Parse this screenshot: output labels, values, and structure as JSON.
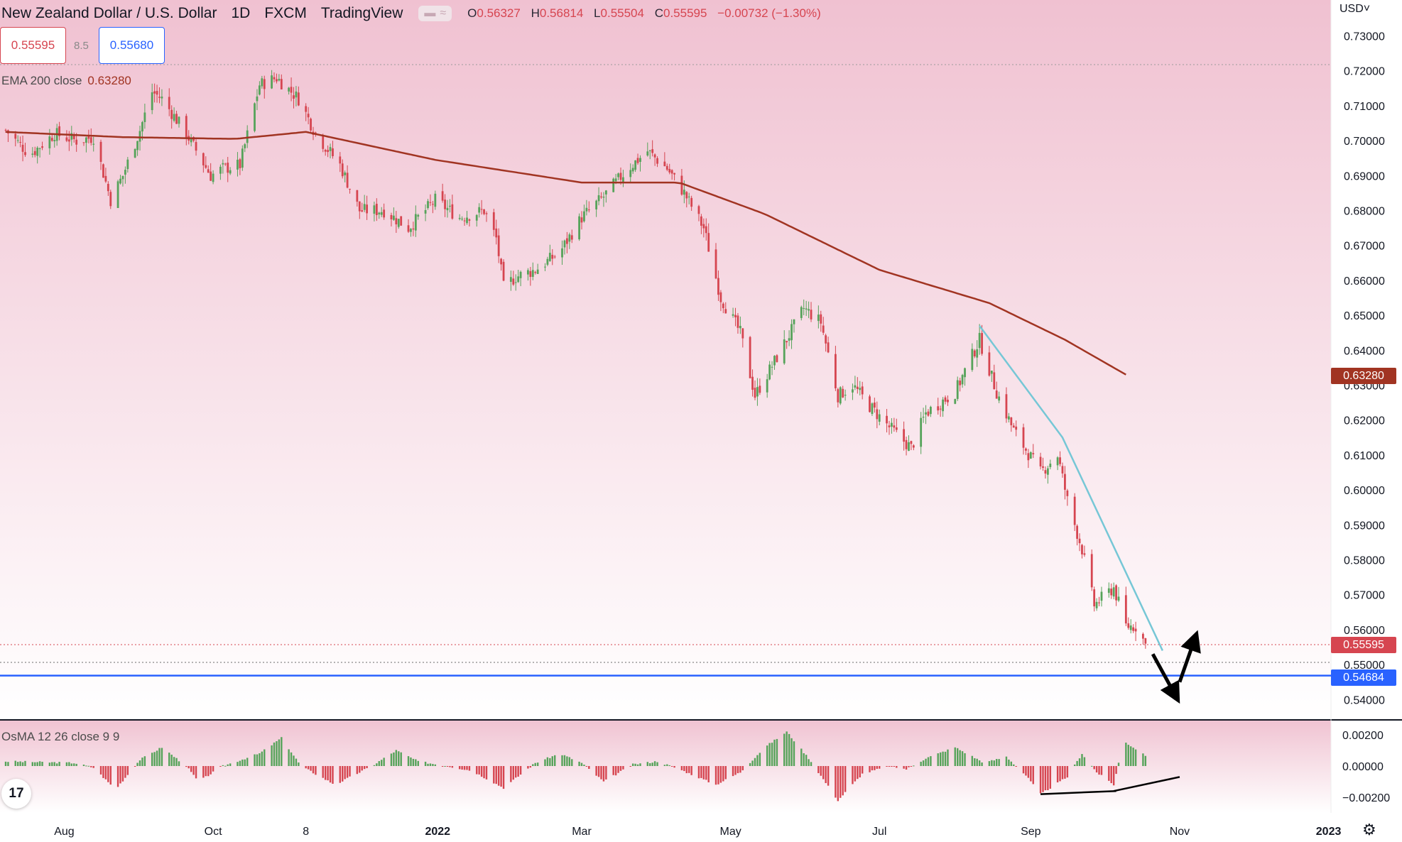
{
  "header": {
    "symbol": "New Zealand Dollar / U.S. Dollar",
    "interval": "1D",
    "exchange": "FXCM",
    "source": "TradingView",
    "ohlc": {
      "open_label": "O",
      "open": "0.56327",
      "high_label": "H",
      "high": "0.56814",
      "low_label": "L",
      "low": "0.55504",
      "close_label": "C",
      "close": "0.55595",
      "change": "−0.00732 (−1.30%)"
    }
  },
  "quote": {
    "bid": "0.55595",
    "spread": "8.5",
    "ask": "0.55680"
  },
  "indicators": {
    "ema": {
      "label": "EMA 200 close",
      "value": "0.63280"
    },
    "osma": {
      "label": "OsMA 12 26 close 9 9"
    }
  },
  "axis": {
    "currency": "USD˅"
  },
  "price_tags": {
    "ema": "0.63280",
    "close": "0.55595",
    "support": "0.54684"
  },
  "colors": {
    "up": "#26a69a",
    "up_body": "#56a35a",
    "down": "#d64550",
    "ema": "#a13422",
    "trendline": "#76c7d6",
    "support": "#2962ff"
  },
  "icons": {
    "logo": "tradingview-logo-icon",
    "settings": "gear-icon",
    "visibility": "eye-icon"
  },
  "chart_data": [
    {
      "type": "candlestick",
      "title": "New Zealand Dollar / U.S. Dollar",
      "ylim": [
        0.538,
        0.735
      ],
      "y_ticks": [
        "0.73000",
        "0.72000",
        "0.71000",
        "0.70000",
        "0.69000",
        "0.68000",
        "0.67000",
        "0.66000",
        "0.65000",
        "0.64000",
        "0.63000",
        "0.62000",
        "0.61000",
        "0.60000",
        "0.59000",
        "0.58000",
        "0.57000",
        "0.56000",
        "0.55000",
        "0.54000"
      ],
      "x_ticks": [
        "Aug",
        "Oct",
        "8",
        "2022",
        "Mar",
        "May",
        "Jul",
        "Sep",
        "Nov",
        "2023"
      ],
      "x_tick_dates": [
        "2021-08-01",
        "2021-10-01",
        "2021-11-08",
        "2022-01-01",
        "2022-03-01",
        "2022-05-01",
        "2022-07-01",
        "2022-09-01",
        "2022-11-01",
        "2023-01-01"
      ],
      "series": [
        {
          "kind": "close_path",
          "points": [
            [
              "2021-07-08",
              0.703
            ],
            [
              "2021-07-18",
              0.696
            ],
            [
              "2021-07-28",
              0.702
            ],
            [
              "2021-08-06",
              0.7
            ],
            [
              "2021-08-13",
              0.701
            ],
            [
              "2021-08-20",
              0.683
            ],
            [
              "2021-08-25",
              0.69
            ],
            [
              "2021-09-01",
              0.703
            ],
            [
              "2021-09-06",
              0.714
            ],
            [
              "2021-09-10",
              0.712
            ],
            [
              "2021-09-20",
              0.702
            ],
            [
              "2021-09-30",
              0.69
            ],
            [
              "2021-10-05",
              0.692
            ],
            [
              "2021-10-12",
              0.693
            ],
            [
              "2021-10-20",
              0.716
            ],
            [
              "2021-10-27",
              0.718
            ],
            [
              "2021-11-05",
              0.712
            ],
            [
              "2021-11-12",
              0.702
            ],
            [
              "2021-11-22",
              0.693
            ],
            [
              "2021-11-30",
              0.68
            ],
            [
              "2021-12-10",
              0.68
            ],
            [
              "2021-12-20",
              0.675
            ],
            [
              "2021-12-31",
              0.683
            ],
            [
              "2022-01-10",
              0.678
            ],
            [
              "2022-01-20",
              0.68
            ],
            [
              "2022-01-25",
              0.672
            ],
            [
              "2022-01-28",
              0.658
            ],
            [
              "2022-02-02",
              0.661
            ],
            [
              "2022-02-10",
              0.663
            ],
            [
              "2022-02-20",
              0.668
            ],
            [
              "2022-03-01",
              0.678
            ],
            [
              "2022-03-10",
              0.684
            ],
            [
              "2022-03-20",
              0.692
            ],
            [
              "2022-03-28",
              0.697
            ],
            [
              "2022-04-05",
              0.692
            ],
            [
              "2022-04-12",
              0.685
            ],
            [
              "2022-04-20",
              0.675
            ],
            [
              "2022-04-27",
              0.655
            ],
            [
              "2022-05-05",
              0.645
            ],
            [
              "2022-05-11",
              0.627
            ],
            [
              "2022-05-20",
              0.638
            ],
            [
              "2022-05-31",
              0.652
            ],
            [
              "2022-06-07",
              0.648
            ],
            [
              "2022-06-14",
              0.627
            ],
            [
              "2022-06-20",
              0.63
            ],
            [
              "2022-06-27",
              0.624
            ],
            [
              "2022-07-05",
              0.618
            ],
            [
              "2022-07-14",
              0.612
            ],
            [
              "2022-07-20",
              0.622
            ],
            [
              "2022-08-01",
              0.628
            ],
            [
              "2022-08-11",
              0.643
            ],
            [
              "2022-08-18",
              0.628
            ],
            [
              "2022-08-25",
              0.617
            ],
            [
              "2022-09-05",
              0.605
            ],
            [
              "2022-09-12",
              0.61
            ],
            [
              "2022-09-16",
              0.597
            ],
            [
              "2022-09-22",
              0.583
            ],
            [
              "2022-09-27",
              0.567
            ],
            [
              "2022-10-05",
              0.572
            ],
            [
              "2022-10-10",
              0.561
            ],
            [
              "2022-10-14",
              0.561
            ],
            [
              "2022-10-18",
              0.556
            ]
          ]
        },
        {
          "name": "EMA 200 close",
          "kind": "line",
          "points": [
            [
              "2021-07-08",
              0.7025
            ],
            [
              "2021-08-25",
              0.701
            ],
            [
              "2021-10-10",
              0.7005
            ],
            [
              "2021-11-08",
              0.7025
            ],
            [
              "2021-12-31",
              0.6945
            ],
            [
              "2022-03-01",
              0.688
            ],
            [
              "2022-04-10",
              0.688
            ],
            [
              "2022-05-15",
              0.679
            ],
            [
              "2022-07-01",
              0.663
            ],
            [
              "2022-08-15",
              0.6535
            ],
            [
              "2022-09-15",
              0.643
            ],
            [
              "2022-10-10",
              0.633
            ]
          ]
        },
        {
          "kind": "trendline",
          "points": [
            [
              "2022-08-11",
              0.647
            ],
            [
              "2022-09-14",
              0.615
            ],
            [
              "2022-10-25",
              0.554
            ]
          ]
        },
        {
          "kind": "horizontal_line",
          "value": 0.54684
        }
      ],
      "annotations": [
        {
          "type": "arrow",
          "direction": "down",
          "from": [
            "2022-10-21",
            0.553
          ],
          "to": [
            "2022-10-30",
            0.5415
          ]
        },
        {
          "type": "arrow",
          "direction": "up",
          "from": [
            "2022-11-01",
            0.545
          ],
          "to": [
            "2022-11-07",
            0.557
          ]
        }
      ]
    },
    {
      "type": "bar",
      "title": "OsMA 12 26 close 9 9",
      "ylim": [
        -0.0027,
        0.0027
      ],
      "y_ticks": [
        "0.00200",
        "0.00000",
        "−0.00200"
      ],
      "series": [
        {
          "kind": "histogram_path",
          "points": [
            [
              "2021-07-08",
              0.0003
            ],
            [
              "2021-08-05",
              0.0002
            ],
            [
              "2021-08-13",
              -0.0001
            ],
            [
              "2021-08-22",
              -0.0015
            ],
            [
              "2021-09-01",
              0.0004
            ],
            [
              "2021-09-10",
              0.0012
            ],
            [
              "2021-09-20",
              0.0
            ],
            [
              "2021-09-25",
              -0.001
            ],
            [
              "2021-10-05",
              0.0
            ],
            [
              "2021-10-20",
              0.0008
            ],
            [
              "2021-10-29",
              0.0018
            ],
            [
              "2021-11-06",
              0.0
            ],
            [
              "2021-11-20",
              -0.0012
            ],
            [
              "2021-12-05",
              0.0
            ],
            [
              "2021-12-15",
              0.001
            ],
            [
              "2021-12-24",
              0.0003
            ],
            [
              "2022-01-05",
              0.0
            ],
            [
              "2022-01-15",
              -0.0003
            ],
            [
              "2022-01-28",
              -0.0014
            ],
            [
              "2022-02-10",
              0.0002
            ],
            [
              "2022-02-20",
              0.0008
            ],
            [
              "2022-03-01",
              0.0002
            ],
            [
              "2022-03-10",
              -0.001
            ],
            [
              "2022-03-22",
              0.0001
            ],
            [
              "2022-04-01",
              0.0003
            ],
            [
              "2022-04-10",
              -0.0002
            ],
            [
              "2022-04-25",
              -0.0012
            ],
            [
              "2022-05-05",
              -0.0004
            ],
            [
              "2022-05-15",
              0.0012
            ],
            [
              "2022-05-24",
              0.0022
            ],
            [
              "2022-06-02",
              0.0005
            ],
            [
              "2022-06-14",
              -0.0022
            ],
            [
              "2022-06-24",
              -0.0005
            ],
            [
              "2022-07-05",
              0.0
            ],
            [
              "2022-07-12",
              -0.0002
            ],
            [
              "2022-07-20",
              0.0005
            ],
            [
              "2022-08-01",
              0.0012
            ],
            [
              "2022-08-13",
              0.0002
            ],
            [
              "2022-08-22",
              0.0006
            ],
            [
              "2022-08-30",
              -0.0006
            ],
            [
              "2022-09-05",
              -0.0018
            ],
            [
              "2022-09-16",
              -0.0007
            ],
            [
              "2022-09-22",
              0.0008
            ],
            [
              "2022-09-28",
              -0.0004
            ],
            [
              "2022-10-05",
              -0.0012
            ],
            [
              "2022-10-09",
              0.0016
            ],
            [
              "2022-10-18",
              0.0007
            ]
          ]
        },
        {
          "kind": "divergence_line",
          "points": [
            [
              "2022-09-05",
              -0.0018
            ],
            [
              "2022-10-06",
              -0.0016
            ]
          ]
        },
        {
          "kind": "divergence_line",
          "points": [
            [
              "2022-10-05",
              -0.0016
            ],
            [
              "2022-11-01",
              -0.0007
            ]
          ]
        }
      ]
    }
  ]
}
